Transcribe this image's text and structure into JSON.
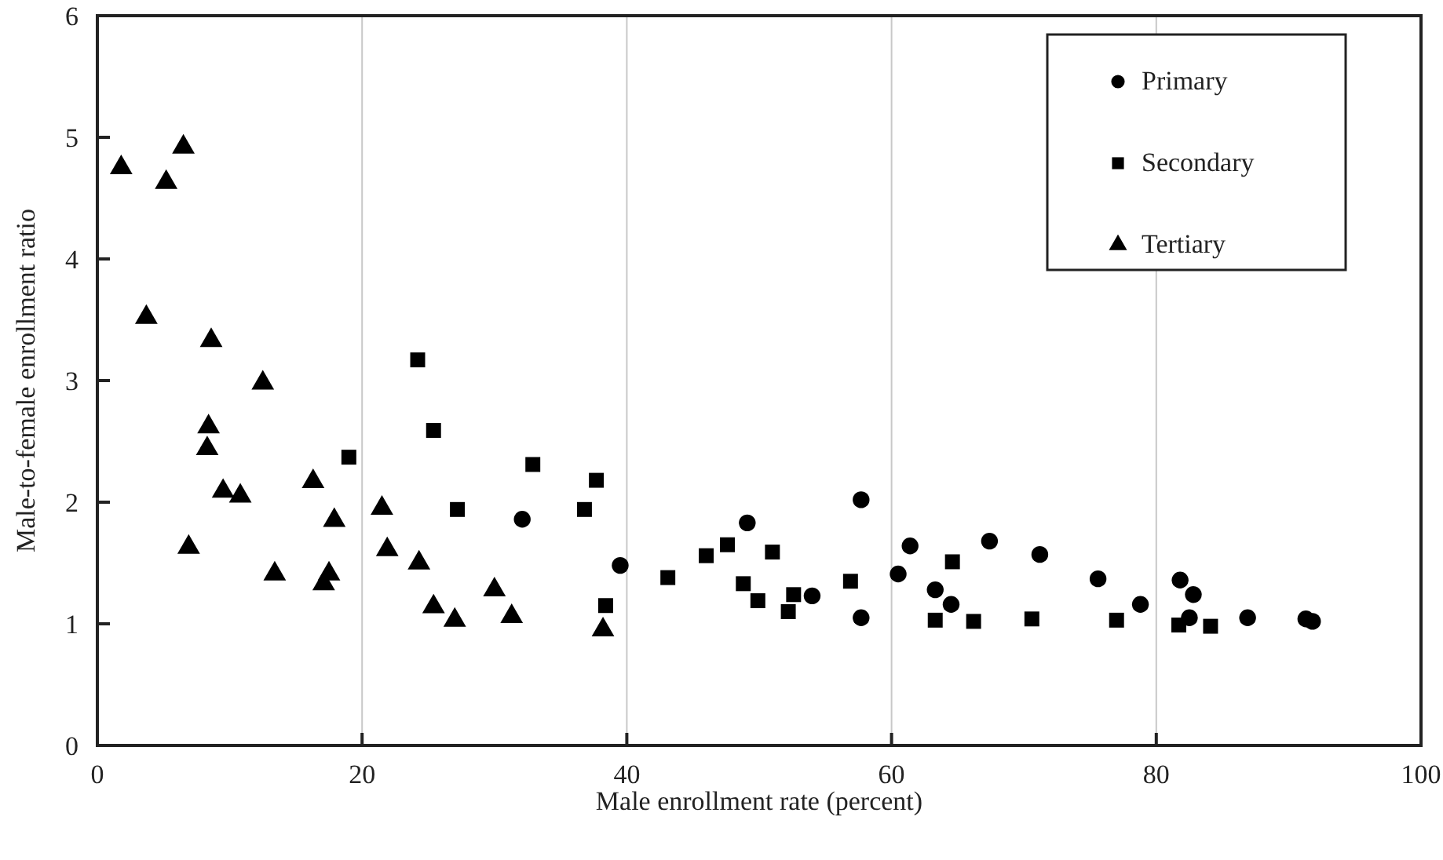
{
  "chart_data": {
    "type": "scatter",
    "xlabel": "Male enrollment rate (percent)",
    "ylabel": "Male-to-female enrollment ratio",
    "xlim": [
      0,
      100
    ],
    "ylim": [
      0,
      6
    ],
    "xticks": [
      0,
      20,
      40,
      60,
      80,
      100
    ],
    "yticks": [
      0,
      1,
      2,
      3,
      4,
      5,
      6
    ],
    "grid": "x",
    "legend": "top right",
    "series": [
      {
        "name": "Primary",
        "color": "#000000",
        "marker": "circle",
        "x": [
          32.1,
          39.5,
          49.1,
          54.0,
          57.7,
          57.7,
          60.5,
          61.4,
          63.3,
          64.5,
          67.4,
          71.2,
          75.6,
          78.8,
          81.8,
          82.8,
          82.5,
          86.9,
          91.3,
          91.8
        ],
        "values": [
          1.86,
          1.48,
          1.83,
          1.23,
          2.02,
          1.05,
          1.41,
          1.64,
          1.28,
          1.16,
          1.68,
          1.57,
          1.37,
          1.16,
          1.36,
          1.24,
          1.05,
          1.05,
          1.04,
          1.02
        ]
      },
      {
        "name": "Secondary",
        "color": "#000000",
        "marker": "square",
        "x": [
          19.0,
          24.2,
          25.4,
          27.2,
          32.9,
          36.8,
          37.7,
          38.4,
          43.1,
          46.0,
          47.6,
          48.8,
          49.9,
          51.0,
          52.2,
          52.6,
          56.9,
          63.3,
          64.6,
          66.2,
          70.6,
          77.0,
          81.7,
          84.1
        ],
        "values": [
          2.37,
          3.17,
          2.59,
          1.94,
          2.31,
          1.94,
          2.18,
          1.15,
          1.38,
          1.56,
          1.65,
          1.33,
          1.19,
          1.59,
          1.1,
          1.24,
          1.35,
          1.03,
          1.51,
          1.02,
          1.04,
          1.03,
          0.99,
          0.98
        ]
      },
      {
        "name": "Tertiary",
        "color": "#000000",
        "marker": "triangle",
        "x": [
          1.8,
          5.2,
          6.5,
          3.7,
          8.6,
          12.5,
          8.4,
          8.3,
          9.5,
          10.8,
          16.3,
          17.9,
          6.9,
          13.4,
          17.5,
          17.1,
          21.5,
          21.9,
          24.3,
          25.4,
          27.0,
          30.0,
          31.3,
          38.2
        ],
        "values": [
          4.75,
          4.63,
          4.92,
          3.52,
          3.33,
          2.98,
          2.62,
          2.44,
          2.09,
          2.05,
          2.17,
          1.85,
          1.63,
          1.41,
          1.41,
          1.33,
          1.95,
          1.61,
          1.5,
          1.14,
          1.03,
          1.28,
          1.06,
          0.95
        ]
      }
    ]
  }
}
